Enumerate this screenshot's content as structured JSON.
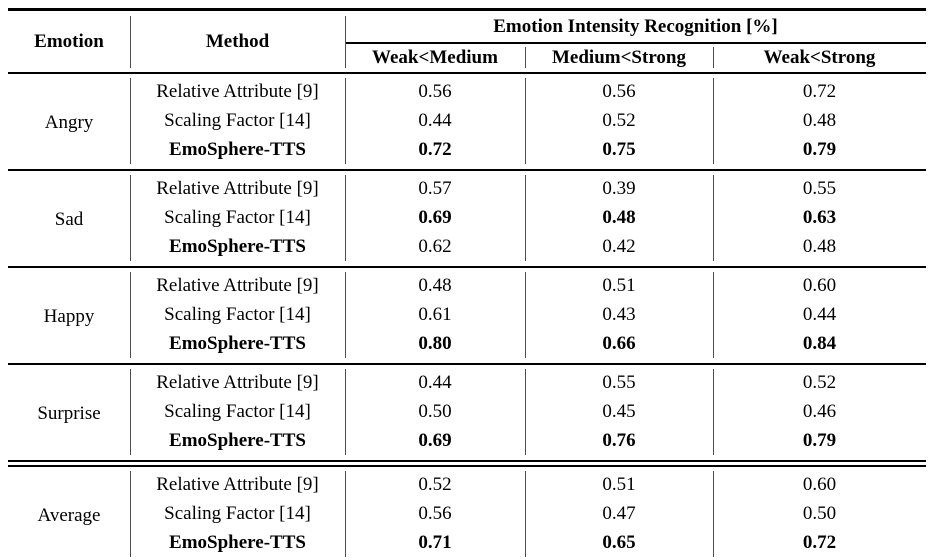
{
  "table": {
    "header": {
      "emotion_col": "Emotion",
      "method_col": "Method",
      "group_title": "Emotion Intensity Recognition [%]",
      "subcols": [
        "Weak<Medium",
        "Medium<Strong",
        "Weak<Strong"
      ]
    },
    "groups": [
      {
        "emotion": "Angry",
        "separator": "single",
        "rows": [
          {
            "method": "Relative Attribute [9]",
            "method_bold": false,
            "values": [
              "0.56",
              "0.56",
              "0.72"
            ],
            "values_bold": [
              false,
              false,
              false
            ]
          },
          {
            "method": "Scaling Factor [14]",
            "method_bold": false,
            "values": [
              "0.44",
              "0.52",
              "0.48"
            ],
            "values_bold": [
              false,
              false,
              false
            ]
          },
          {
            "method": "EmoSphere-TTS",
            "method_bold": true,
            "values": [
              "0.72",
              "0.75",
              "0.79"
            ],
            "values_bold": [
              true,
              true,
              true
            ]
          }
        ]
      },
      {
        "emotion": "Sad",
        "separator": "single",
        "rows": [
          {
            "method": "Relative Attribute [9]",
            "method_bold": false,
            "values": [
              "0.57",
              "0.39",
              "0.55"
            ],
            "values_bold": [
              false,
              false,
              false
            ]
          },
          {
            "method": "Scaling Factor [14]",
            "method_bold": false,
            "values": [
              "0.69",
              "0.48",
              "0.63"
            ],
            "values_bold": [
              true,
              true,
              true
            ]
          },
          {
            "method": "EmoSphere-TTS",
            "method_bold": true,
            "values": [
              "0.62",
              "0.42",
              "0.48"
            ],
            "values_bold": [
              false,
              false,
              false
            ]
          }
        ]
      },
      {
        "emotion": "Happy",
        "separator": "single",
        "rows": [
          {
            "method": "Relative Attribute [9]",
            "method_bold": false,
            "values": [
              "0.48",
              "0.51",
              "0.60"
            ],
            "values_bold": [
              false,
              false,
              false
            ]
          },
          {
            "method": "Scaling Factor [14]",
            "method_bold": false,
            "values": [
              "0.61",
              "0.43",
              "0.44"
            ],
            "values_bold": [
              false,
              false,
              false
            ]
          },
          {
            "method": "EmoSphere-TTS",
            "method_bold": true,
            "values": [
              "0.80",
              "0.66",
              "0.84"
            ],
            "values_bold": [
              true,
              true,
              true
            ]
          }
        ]
      },
      {
        "emotion": "Surprise",
        "separator": "single",
        "rows": [
          {
            "method": "Relative Attribute [9]",
            "method_bold": false,
            "values": [
              "0.44",
              "0.55",
              "0.52"
            ],
            "values_bold": [
              false,
              false,
              false
            ]
          },
          {
            "method": "Scaling Factor [14]",
            "method_bold": false,
            "values": [
              "0.50",
              "0.45",
              "0.46"
            ],
            "values_bold": [
              false,
              false,
              false
            ]
          },
          {
            "method": "EmoSphere-TTS",
            "method_bold": true,
            "values": [
              "0.69",
              "0.76",
              "0.79"
            ],
            "values_bold": [
              true,
              true,
              true
            ]
          }
        ]
      },
      {
        "emotion": "Average",
        "separator": "double",
        "rows": [
          {
            "method": "Relative Attribute [9]",
            "method_bold": false,
            "values": [
              "0.52",
              "0.51",
              "0.60"
            ],
            "values_bold": [
              false,
              false,
              false
            ]
          },
          {
            "method": "Scaling Factor [14]",
            "method_bold": false,
            "values": [
              "0.56",
              "0.47",
              "0.50"
            ],
            "values_bold": [
              false,
              false,
              false
            ]
          },
          {
            "method": "EmoSphere-TTS",
            "method_bold": true,
            "values": [
              "0.71",
              "0.65",
              "0.72"
            ],
            "values_bold": [
              true,
              true,
              true
            ]
          }
        ]
      }
    ]
  }
}
